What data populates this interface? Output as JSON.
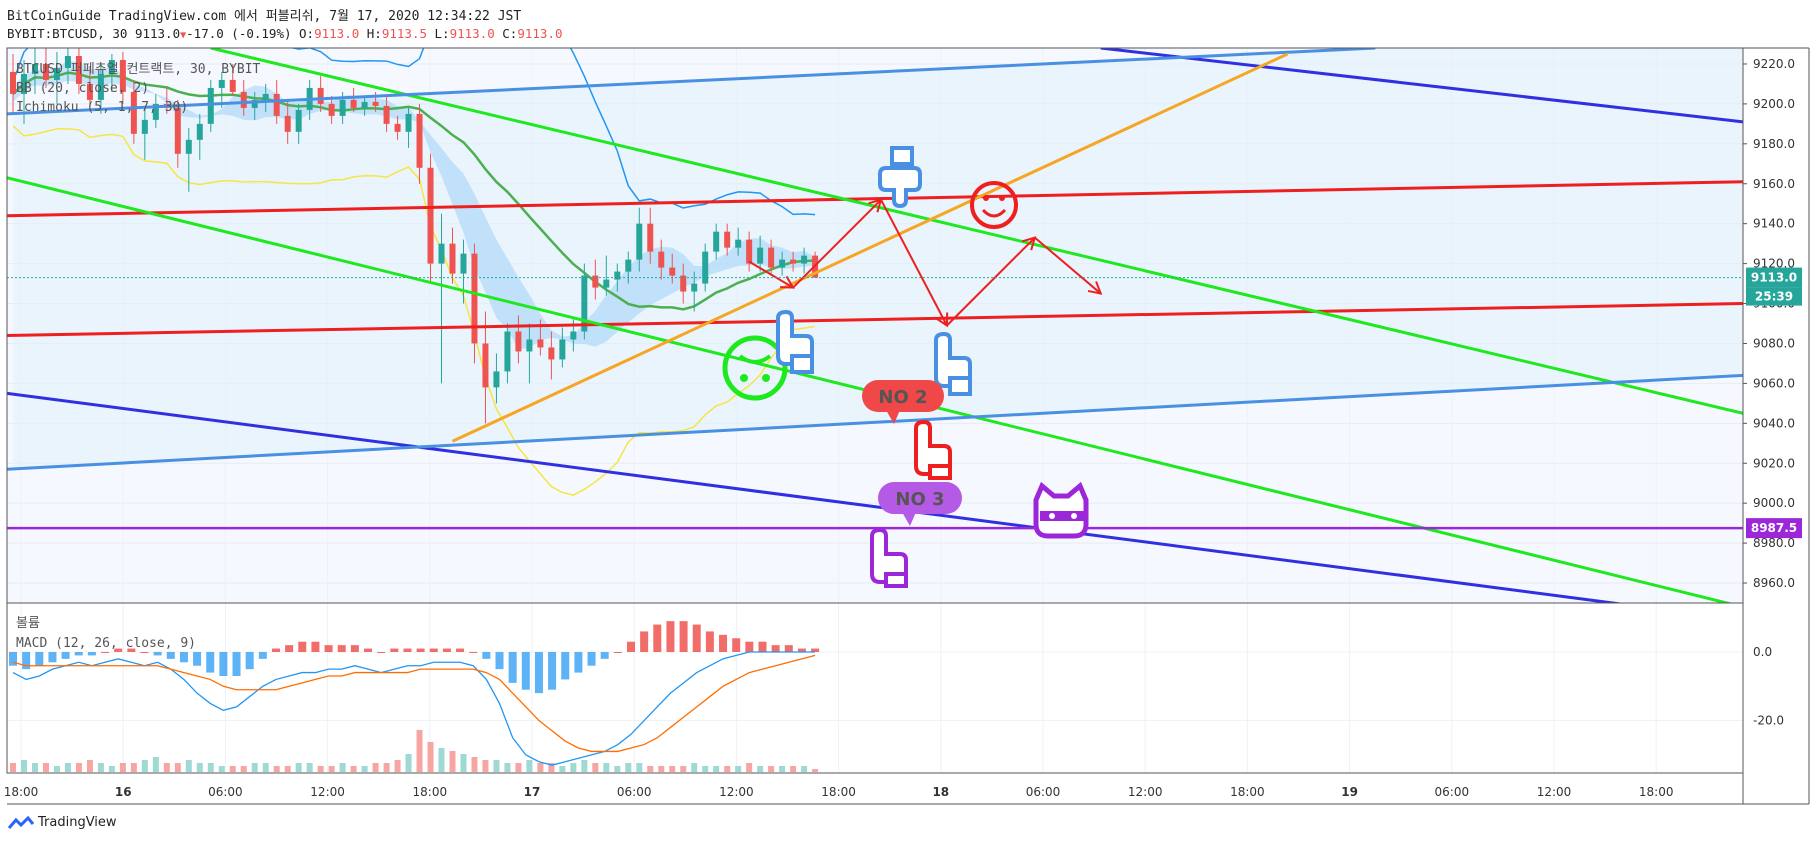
{
  "header": {
    "line1": "BitCoinGuide TradingView.com 에서 퍼블리쉬, 7월 17, 2020 12:34:22 JST",
    "symbol": "BYBIT:BTCUSD, 30",
    "last": "9113.0",
    "change": "-17.0 (-0.19%)",
    "o_label": "O:",
    "o": "9113.0",
    "h_label": "H:",
    "h": "9113.5",
    "l_label": "L:",
    "l": "9113.0",
    "c_label": "C:",
    "c": "9113.0"
  },
  "legend": {
    "title": "BTCUSD 퍼페츄얼 컨트랙트, 30, BYBIT",
    "bb": "BB (20, close, 2)",
    "ichimoku": "Ichimoku (5, 1, 7, 30)",
    "volume": "볼륨",
    "macd": "MACD (12, 26, close, 9)"
  },
  "annotations": {
    "no2": "NO 2",
    "no3": "NO 3"
  },
  "price_badges": {
    "last": "9113.0",
    "countdown": "25:39",
    "level": "8987.5"
  },
  "brand": {
    "name": "TradingView"
  },
  "colors": {
    "up": "#26a69a",
    "down": "#ef5350",
    "red_line": "#ee1f1f",
    "green_line": "#1ee81e",
    "blue_line": "#3030e0",
    "light_blue_line": "#4a90e2",
    "orange_line": "#f5a623",
    "purple_line": "#9c27d8",
    "bb_band": "#2196f3",
    "ma_green": "#4caf50",
    "ichi_yellow": "#f5e642"
  },
  "chart_data": {
    "type": "candlestick",
    "price_axis": {
      "ticks": [
        9220,
        9200,
        9180,
        9160,
        9140,
        9120,
        9100,
        9080,
        9060,
        9040,
        9020,
        9000,
        8980,
        8960
      ],
      "range": [
        8950,
        9228
      ]
    },
    "macd_axis": {
      "ticks": [
        0,
        -20
      ],
      "tick_labels": [
        "0.0",
        "-20.0"
      ],
      "range": [
        -35,
        14
      ]
    },
    "time_axis": {
      "labels": [
        "18:00",
        "16",
        "06:00",
        "12:00",
        "18:00",
        "17",
        "06:00",
        "12:00",
        "18:00",
        "18",
        "06:00",
        "12:00",
        "18:00",
        "19",
        "06:00",
        "12:00",
        "18:00"
      ],
      "bold": [
        "16",
        "17",
        "18",
        "19"
      ]
    },
    "candles_ohlc": [
      [
        9216,
        9225,
        9195,
        9205
      ],
      [
        9205,
        9222,
        9190,
        9215
      ],
      [
        9215,
        9228,
        9205,
        9220
      ],
      [
        9220,
        9228,
        9208,
        9212
      ],
      [
        9212,
        9226,
        9200,
        9218
      ],
      [
        9218,
        9228,
        9210,
        9224
      ],
      [
        9224,
        9228,
        9205,
        9210
      ],
      [
        9210,
        9218,
        9198,
        9202
      ],
      [
        9202,
        9220,
        9195,
        9215
      ],
      [
        9215,
        9225,
        9206,
        9222
      ],
      [
        9222,
        9226,
        9200,
        9206
      ],
      [
        9206,
        9212,
        9180,
        9185
      ],
      [
        9185,
        9198,
        9172,
        9192
      ],
      [
        9192,
        9205,
        9188,
        9200
      ],
      [
        9200,
        9208,
        9195,
        9198
      ],
      [
        9198,
        9202,
        9168,
        9175
      ],
      [
        9175,
        9188,
        9156,
        9182
      ],
      [
        9182,
        9195,
        9172,
        9190
      ],
      [
        9190,
        9212,
        9186,
        9208
      ],
      [
        9208,
        9216,
        9198,
        9212
      ],
      [
        9212,
        9220,
        9204,
        9206
      ],
      [
        9206,
        9212,
        9194,
        9198
      ],
      [
        9198,
        9206,
        9192,
        9202
      ],
      [
        9202,
        9210,
        9196,
        9205
      ],
      [
        9205,
        9212,
        9190,
        9194
      ],
      [
        9194,
        9202,
        9180,
        9186
      ],
      [
        9186,
        9200,
        9180,
        9197
      ],
      [
        9197,
        9212,
        9192,
        9208
      ],
      [
        9208,
        9214,
        9196,
        9200
      ],
      [
        9200,
        9204,
        9190,
        9194
      ],
      [
        9194,
        9206,
        9190,
        9202
      ],
      [
        9202,
        9208,
        9196,
        9198
      ],
      [
        9198,
        9204,
        9194,
        9201
      ],
      [
        9201,
        9206,
        9196,
        9199
      ],
      [
        9199,
        9204,
        9186,
        9190
      ],
      [
        9190,
        9194,
        9182,
        9186
      ],
      [
        9186,
        9198,
        9178,
        9195
      ],
      [
        9195,
        9200,
        9160,
        9168
      ],
      [
        9168,
        9175,
        9110,
        9120
      ],
      [
        9120,
        9145,
        9060,
        9130
      ],
      [
        9130,
        9138,
        9110,
        9115
      ],
      [
        9115,
        9132,
        9100,
        9125
      ],
      [
        9125,
        9130,
        9070,
        9080
      ],
      [
        9080,
        9096,
        9040,
        9058
      ],
      [
        9058,
        9075,
        9050,
        9066
      ],
      [
        9066,
        9090,
        9060,
        9086
      ],
      [
        9086,
        9094,
        9070,
        9076
      ],
      [
        9076,
        9090,
        9060,
        9082
      ],
      [
        9082,
        9092,
        9074,
        9078
      ],
      [
        9078,
        9086,
        9062,
        9072
      ],
      [
        9072,
        9088,
        9068,
        9082
      ],
      [
        9082,
        9092,
        9076,
        9086
      ],
      [
        9086,
        9120,
        9082,
        9114
      ],
      [
        9114,
        9122,
        9102,
        9108
      ],
      [
        9108,
        9124,
        9104,
        9112
      ],
      [
        9112,
        9120,
        9106,
        9116
      ],
      [
        9116,
        9126,
        9110,
        9122
      ],
      [
        9122,
        9148,
        9116,
        9140
      ],
      [
        9140,
        9148,
        9120,
        9126
      ],
      [
        9126,
        9132,
        9112,
        9118
      ],
      [
        9118,
        9125,
        9110,
        9114
      ],
      [
        9114,
        9120,
        9100,
        9106
      ],
      [
        9106,
        9116,
        9096,
        9110
      ],
      [
        9110,
        9130,
        9106,
        9126
      ],
      [
        9126,
        9140,
        9122,
        9136
      ],
      [
        9136,
        9140,
        9124,
        9128
      ],
      [
        9128,
        9138,
        9124,
        9132
      ],
      [
        9132,
        9136,
        9116,
        9120
      ],
      [
        9120,
        9134,
        9116,
        9128
      ],
      [
        9128,
        9132,
        9114,
        9118
      ],
      [
        9118,
        9126,
        9114,
        9122
      ],
      [
        9122,
        9126,
        9116,
        9120
      ],
      [
        9120,
        9128,
        9115,
        9124
      ],
      [
        9124,
        9126,
        9114,
        9113
      ]
    ],
    "lines": [
      {
        "name": "red_upper",
        "color": "red",
        "from": [
          0,
          9144
        ],
        "to": [
          157,
          9161
        ]
      },
      {
        "name": "red_lower",
        "color": "red",
        "from": [
          0,
          9084
        ],
        "to": [
          157,
          9100
        ]
      },
      {
        "name": "green_upper",
        "color": "green",
        "from": [
          18,
          9228
        ],
        "to": [
          157,
          9045
        ]
      },
      {
        "name": "green_lower",
        "color": "green",
        "from": [
          0,
          9163
        ],
        "to": [
          157,
          8948
        ]
      },
      {
        "name": "blue_upper",
        "color": "blue",
        "from": [
          99,
          9228
        ],
        "to": [
          157,
          9191
        ]
      },
      {
        "name": "blue_lower",
        "color": "blue",
        "from": [
          0,
          9055
        ],
        "to": [
          147,
          8949
        ]
      },
      {
        "name": "light_blue_upper",
        "color": "light_blue",
        "from": [
          0,
          9195
        ],
        "to": [
          124,
          9228
        ]
      },
      {
        "name": "light_blue_lower",
        "color": "light_blue",
        "from": [
          0,
          9017
        ],
        "to": [
          157,
          9064
        ]
      },
      {
        "name": "orange_trend",
        "color": "orange",
        "from": [
          40,
          9031
        ],
        "to": [
          116,
          9225
        ]
      },
      {
        "name": "purple_level",
        "color": "purple",
        "from": [
          0,
          8987.5
        ],
        "to": [
          157,
          8987.5
        ]
      }
    ],
    "forecast_arrows": [
      [
        [
          67,
          9121
        ],
        [
          71,
          9108
        ]
      ],
      [
        [
          71,
          9108
        ],
        [
          79,
          9152
        ]
      ],
      [
        [
          79,
          9152
        ],
        [
          85,
          9089
        ]
      ],
      [
        [
          85,
          9089
        ],
        [
          93,
          9133
        ]
      ],
      [
        [
          93,
          9133
        ],
        [
          99,
          9105
        ]
      ]
    ],
    "macd_line": [
      -6,
      -8,
      -7,
      -5,
      -4,
      -3,
      -4,
      -3,
      -2,
      -3,
      -4,
      -3,
      -5,
      -8,
      -12,
      -15,
      -17,
      -16,
      -13,
      -10,
      -8,
      -7,
      -6,
      -6,
      -5,
      -5,
      -4,
      -5,
      -6,
      -5,
      -4,
      -4,
      -3,
      -3,
      -3,
      -4,
      -8,
      -15,
      -25,
      -30,
      -32,
      -33,
      -32,
      -31,
      -30,
      -29,
      -27,
      -24,
      -20,
      -16,
      -12,
      -9,
      -6,
      -4,
      -2,
      -1,
      0,
      0,
      0,
      0,
      0,
      0
    ],
    "signal_line": [
      -3,
      -4,
      -4,
      -4,
      -4,
      -4,
      -4,
      -4,
      -4,
      -4,
      -4,
      -4,
      -5,
      -6,
      -7,
      -8,
      -10,
      -11,
      -11,
      -11,
      -11,
      -10,
      -9,
      -8,
      -7,
      -7,
      -6,
      -6,
      -6,
      -6,
      -6,
      -5,
      -5,
      -5,
      -5,
      -5,
      -6,
      -8,
      -12,
      -16,
      -20,
      -23,
      -26,
      -28,
      -29,
      -29,
      -29,
      -28,
      -27,
      -25,
      -22,
      -19,
      -16,
      -13,
      -10,
      -8,
      -6,
      -5,
      -4,
      -3,
      -2,
      -1
    ],
    "histogram": [
      -4,
      -5,
      -4,
      -3,
      -2,
      -1,
      -1,
      0,
      1,
      1,
      0,
      -1,
      -2,
      -3,
      -4,
      -6,
      -7,
      -7,
      -5,
      -2,
      1,
      2,
      3,
      3,
      2,
      2,
      2,
      1,
      0,
      1,
      1,
      1,
      1,
      1,
      1,
      0,
      -2,
      -5,
      -9,
      -11,
      -12,
      -11,
      -8,
      -6,
      -4,
      -2,
      0,
      3,
      6,
      8,
      9,
      9,
      8,
      6,
      5,
      4,
      3,
      3,
      2,
      2,
      1,
      1
    ],
    "volume": [
      3,
      4,
      3,
      3,
      2,
      3,
      3,
      4,
      3,
      2,
      3,
      3,
      4,
      5,
      3,
      3,
      4,
      3,
      3,
      2,
      2,
      2,
      3,
      3,
      2,
      2,
      3,
      3,
      2,
      2,
      3,
      2,
      2,
      3,
      3,
      4,
      6,
      14,
      10,
      8,
      7,
      6,
      5,
      4,
      4,
      3,
      3,
      4,
      3,
      3,
      2,
      3,
      4,
      3,
      3,
      2,
      3,
      3,
      2,
      2,
      2,
      2,
      3,
      2,
      2,
      2,
      2,
      3,
      2,
      2,
      2,
      2,
      2,
      1
    ]
  }
}
